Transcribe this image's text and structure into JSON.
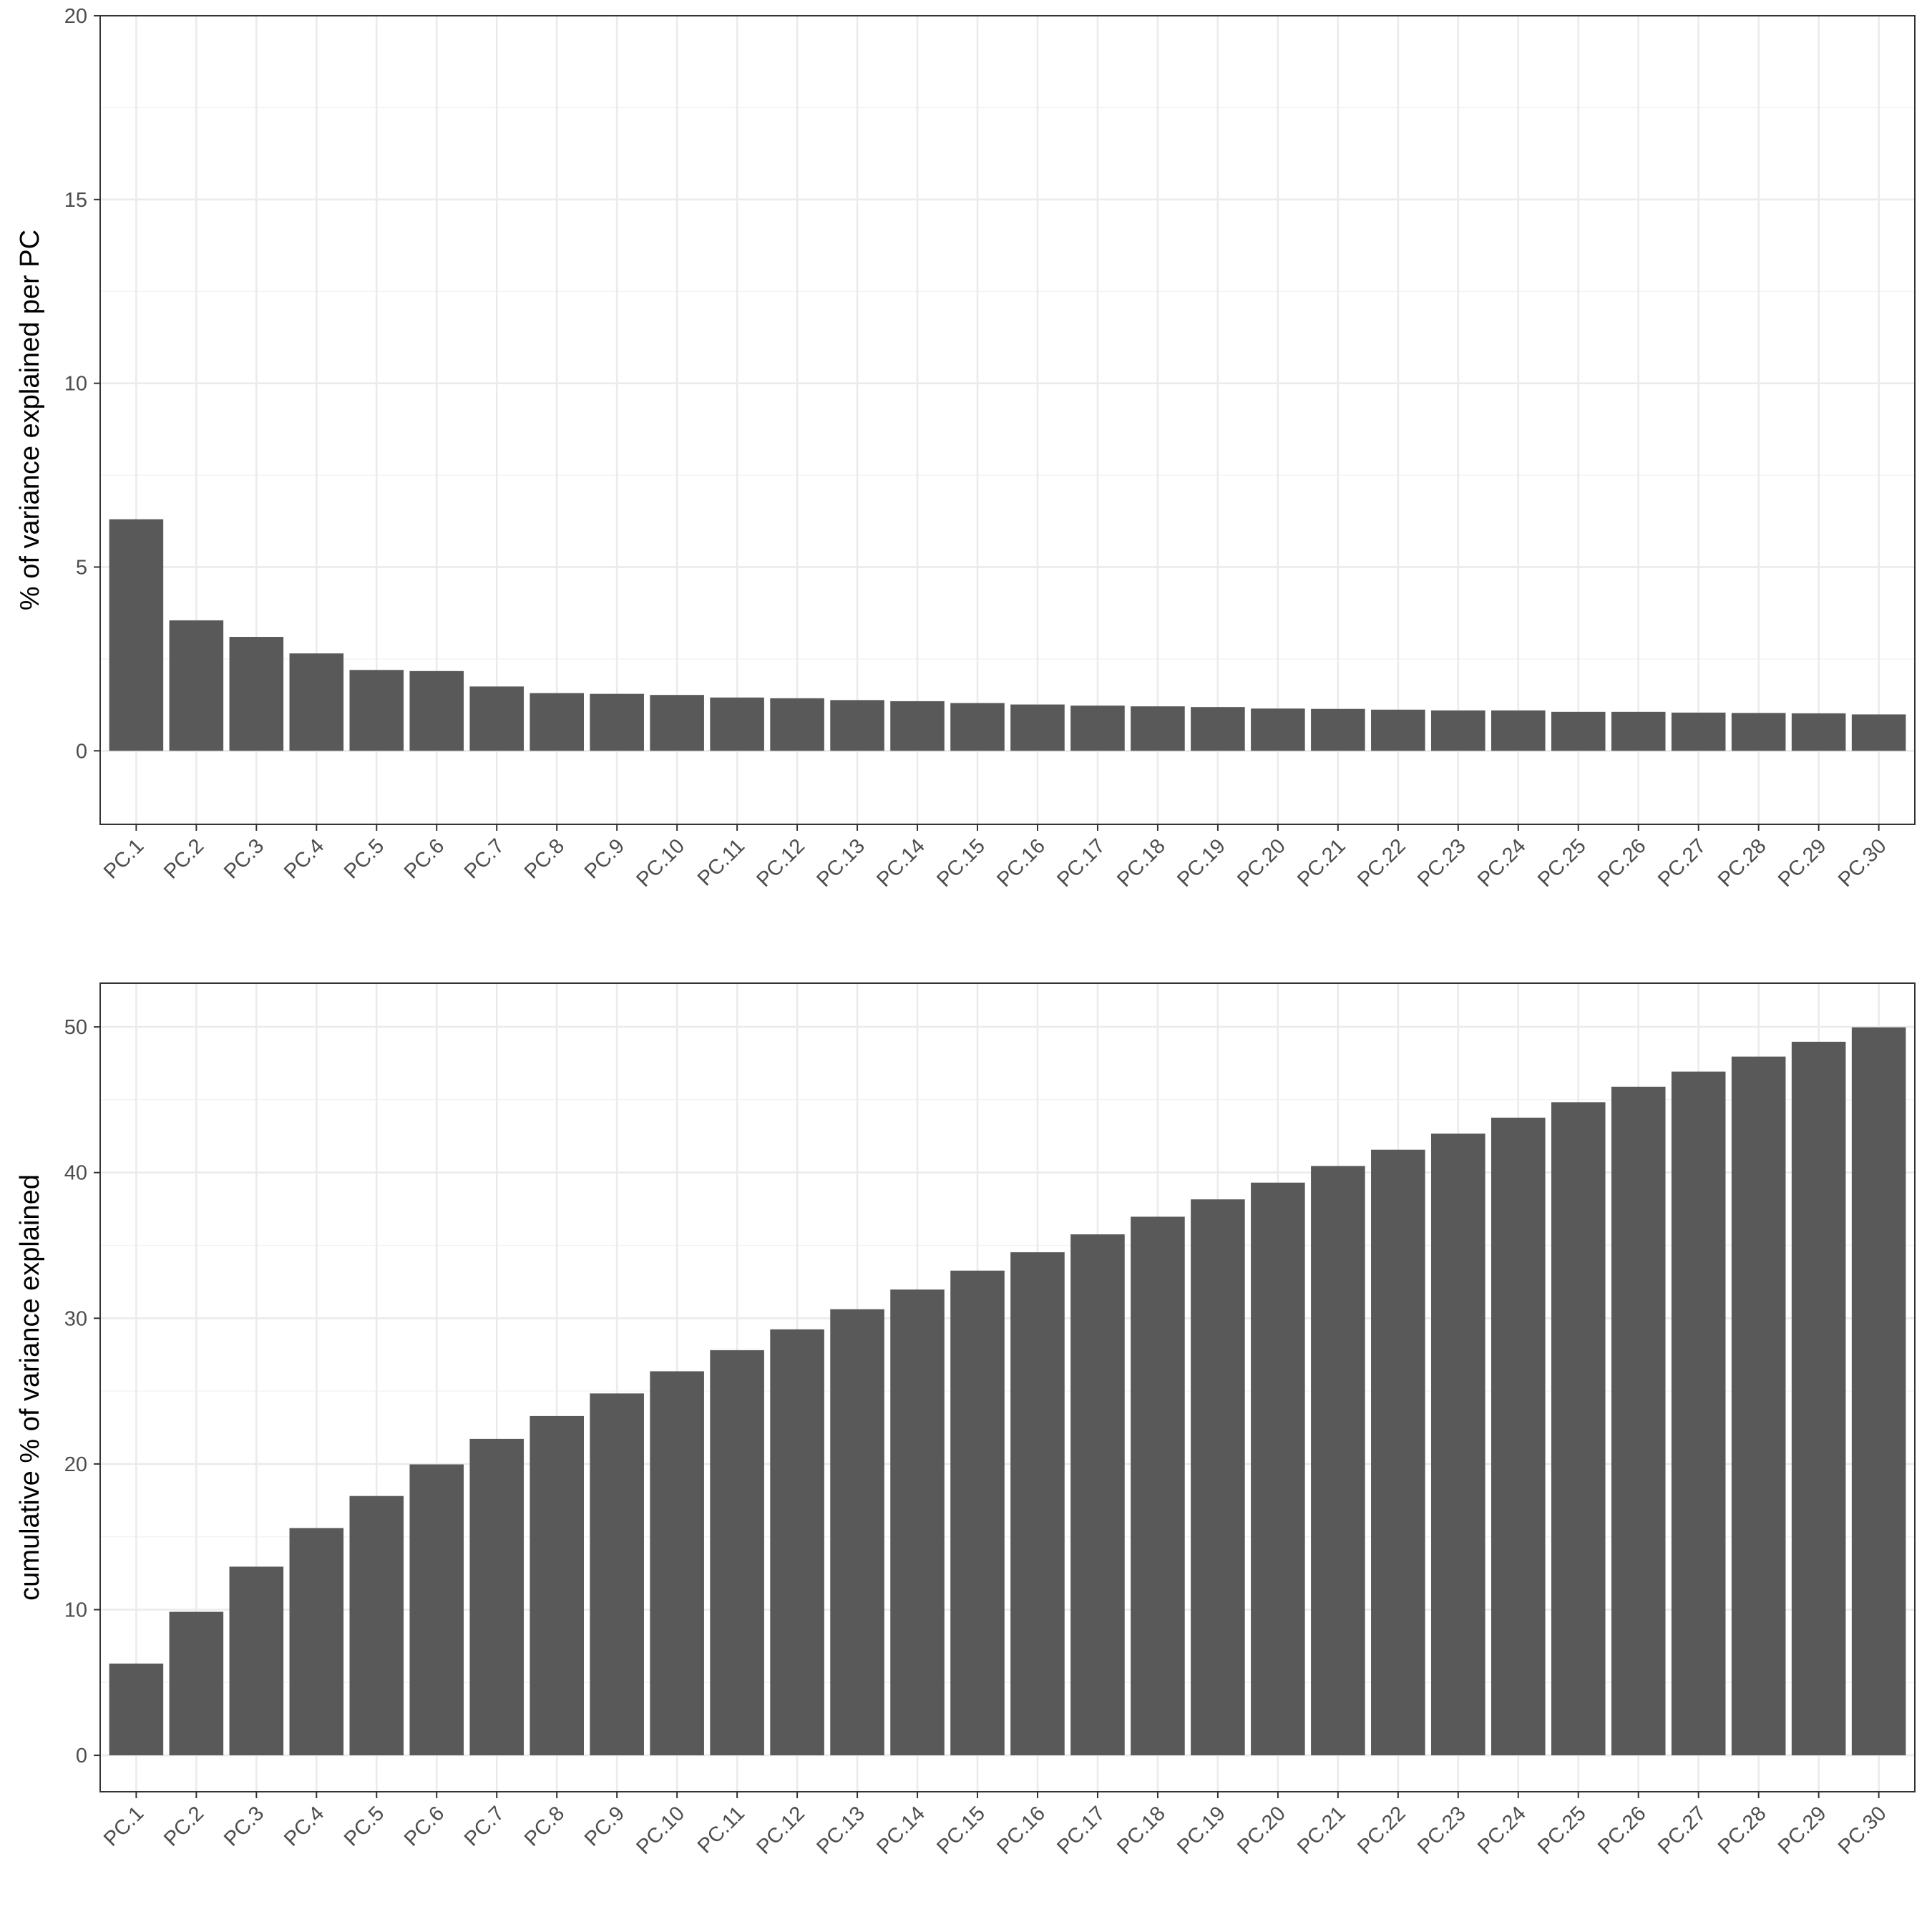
{
  "chart_data": [
    {
      "type": "bar",
      "ylabel": "% of variance explained per PC",
      "xlabel": "",
      "ylim": [
        -2,
        20
      ],
      "yticks": [
        0,
        5,
        10,
        15,
        20
      ],
      "grid": true,
      "bar_color": "#595959",
      "categories": [
        "PC.1",
        "PC.2",
        "PC.3",
        "PC.4",
        "PC.5",
        "PC.6",
        "PC.7",
        "PC.8",
        "PC.9",
        "PC.10",
        "PC.11",
        "PC.12",
        "PC.13",
        "PC.14",
        "PC.15",
        "PC.16",
        "PC.17",
        "PC.18",
        "PC.19",
        "PC.20",
        "PC.21",
        "PC.22",
        "PC.23",
        "PC.24",
        "PC.25",
        "PC.26",
        "PC.27",
        "PC.28",
        "PC.29",
        "PC.30"
      ],
      "values": [
        6.3,
        3.55,
        3.1,
        2.65,
        2.2,
        2.17,
        1.75,
        1.57,
        1.55,
        1.52,
        1.45,
        1.43,
        1.38,
        1.35,
        1.3,
        1.26,
        1.23,
        1.21,
        1.19,
        1.15,
        1.14,
        1.12,
        1.1,
        1.1,
        1.06,
        1.06,
        1.04,
        1.03,
        1.02,
        0.99
      ]
    },
    {
      "type": "bar",
      "ylabel": "cumulative % of variance explained",
      "xlabel": "",
      "ylim": [
        -2.5,
        53
      ],
      "yticks": [
        0,
        10,
        20,
        30,
        40,
        50
      ],
      "grid": true,
      "bar_color": "#595959",
      "categories": [
        "PC.1",
        "PC.2",
        "PC.3",
        "PC.4",
        "PC.5",
        "PC.6",
        "PC.7",
        "PC.8",
        "PC.9",
        "PC.10",
        "PC.11",
        "PC.12",
        "PC.13",
        "PC.14",
        "PC.15",
        "PC.16",
        "PC.17",
        "PC.18",
        "PC.19",
        "PC.20",
        "PC.21",
        "PC.22",
        "PC.23",
        "PC.24",
        "PC.25",
        "PC.26",
        "PC.27",
        "PC.28",
        "PC.29",
        "PC.30"
      ],
      "values": [
        6.3,
        9.85,
        12.95,
        15.6,
        17.8,
        19.97,
        21.72,
        23.29,
        24.84,
        26.36,
        27.81,
        29.24,
        30.62,
        31.97,
        33.27,
        34.53,
        35.76,
        36.97,
        38.16,
        39.31,
        40.45,
        41.57,
        42.67,
        43.77,
        44.83,
        45.89,
        46.93,
        47.96,
        48.98,
        49.97
      ]
    }
  ]
}
